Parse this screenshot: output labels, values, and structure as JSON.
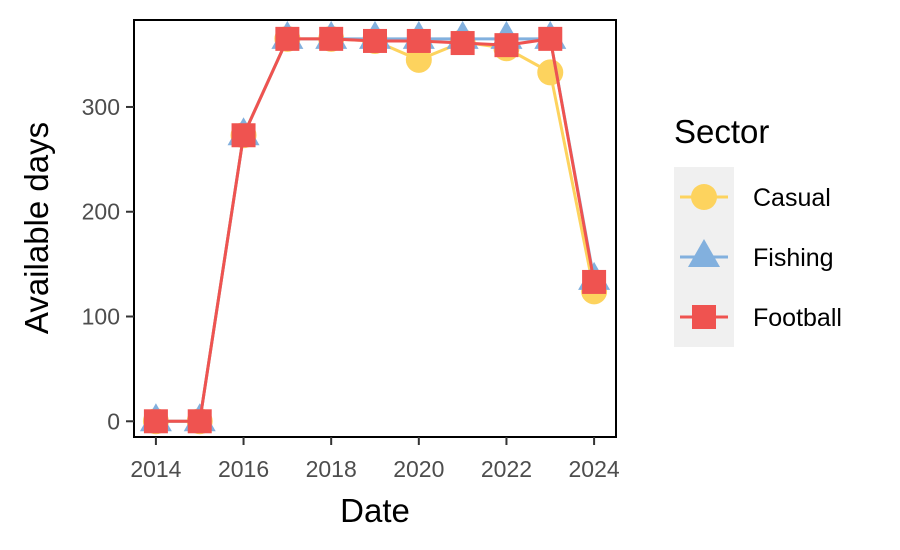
{
  "chart_data": {
    "type": "line",
    "title": "",
    "xlabel": "Date",
    "ylabel": "Available days",
    "xlim": [
      2013.5,
      2024.5
    ],
    "ylim": [
      -15,
      383
    ],
    "x_ticks": [
      "2014",
      "2016",
      "2018",
      "2020",
      "2022",
      "2024"
    ],
    "y_ticks": [
      "0",
      "100",
      "200",
      "300"
    ],
    "grid": false,
    "legend": {
      "title": "Sector",
      "position": "right"
    },
    "x": [
      2014,
      2015,
      2016,
      2017,
      2018,
      2019,
      2020,
      2021,
      2022,
      2023,
      2024
    ],
    "series": [
      {
        "name": "Casual",
        "color": "#FDD35E",
        "marker": "circle",
        "values": [
          0,
          0,
          273,
          365,
          365,
          363,
          345,
          362,
          356,
          333,
          124
        ]
      },
      {
        "name": "Fishing",
        "color": "#82B0DE",
        "marker": "triangle",
        "values": [
          0,
          0,
          273,
          365,
          365,
          365,
          365,
          365,
          365,
          365,
          135
        ]
      },
      {
        "name": "Football",
        "color": "#EF5350",
        "marker": "square",
        "values": [
          0,
          0,
          273,
          365,
          365,
          363,
          363,
          361,
          359,
          365,
          133
        ]
      }
    ]
  }
}
